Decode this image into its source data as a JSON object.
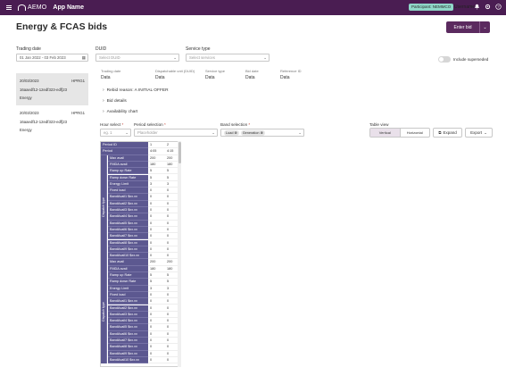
{
  "header": {
    "logo_text": "AEMO",
    "app_name": "App Name",
    "participant_badge": "Participant: NEMMCO",
    "username": "Username"
  },
  "page": {
    "title": "Energy & FCAS bids",
    "enter_bid_label": "Enter bid"
  },
  "filters": {
    "trading_date_label": "Trading date",
    "trading_date_value": "01 Jan 2022 - 03 Feb 2023",
    "duid_label": "DUID",
    "duid_placeholder": "Select DUID",
    "service_type_label": "Service type",
    "service_type_placeholder": "Select services",
    "include_superseded_label": "Include superseded",
    "include_superseded_on": false
  },
  "bids": [
    {
      "date": "20/03/2023",
      "unit": "HPRG1",
      "id": "16aaedf12-12edf323-edf[23",
      "service": "Energy",
      "selected": true
    },
    {
      "date": "20/03/2023",
      "unit": "HPRG1",
      "id": "16aaedf12-12edf323-edf[23",
      "service": "Energy",
      "selected": false
    }
  ],
  "bid_meta": {
    "trading_date_label": "Trading date",
    "trading_date_value": "Data",
    "dispatchable_unit_label": "Dispatchable unit (DUID)",
    "dispatchable_unit_value": "Data",
    "service_type_label": "Service type",
    "service_type_value": "Data",
    "bid_date_label": "Bid date",
    "bid_date_value": "Data",
    "reference_id_label": "Reference ID",
    "reference_id_value": "Data"
  },
  "expanders": {
    "rebid_reason": "Rebid reason: A INITIAL OFFER",
    "bid_details": "Bid details",
    "availability_chart": "Availability chart"
  },
  "controls": {
    "hour_select_label": "Hour select",
    "hour_select_value": "eg. 1",
    "period_selection_label": "Period selection",
    "period_selection_placeholder": "Placeholder",
    "band_selection_label": "Band selection",
    "band_chips": [
      "Load",
      "Generation"
    ],
    "table_view_label": "Table view",
    "table_view_options": [
      "Vertical",
      "Horizontal"
    ],
    "table_view_selected": "Vertical",
    "expand_label": "Expand",
    "export_label": "Export"
  },
  "table": {
    "period_id_label": "Period ID",
    "period_label": "Period",
    "period_ids": [
      "1",
      "2"
    ],
    "periods": [
      "4:05",
      "4:15"
    ],
    "groups": [
      {
        "name": "Dispatch type",
        "rows": [
          {
            "label": "Max avail",
            "values": [
              "200",
              "200"
            ]
          },
          {
            "label": "FMDA avail",
            "values": [
              "180",
              "180"
            ]
          },
          {
            "label": "Ramp up Rate",
            "values": [
              "5",
              "5"
            ]
          },
          {
            "label": "Ramp down Rate",
            "values": [
              "5",
              "5"
            ]
          },
          {
            "label": "Energy Limit",
            "values": [
              "3",
              "3"
            ]
          },
          {
            "label": "Fixed load",
            "values": [
              "0",
              "0"
            ]
          },
          {
            "label": "BandAvail1 $xx.xx",
            "values": [
              "0",
              "0"
            ]
          },
          {
            "label": "BandAvail2 $xx.xx",
            "values": [
              "0",
              "0"
            ]
          },
          {
            "label": "BandAvail3 $xx.xx",
            "values": [
              "0",
              "0"
            ]
          },
          {
            "label": "BandAvail4 $xx.xx",
            "values": [
              "0",
              "0"
            ]
          },
          {
            "label": "BandAvail5 $xx.xx",
            "values": [
              "0",
              "0"
            ]
          },
          {
            "label": "BandAvail6 $xx.xx",
            "values": [
              "0",
              "0"
            ]
          },
          {
            "label": "BandAvail7 $xx.xx",
            "values": [
              "0",
              "0"
            ]
          },
          {
            "label": "BandAvail8 $xx.xx",
            "values": [
              "0",
              "0"
            ]
          },
          {
            "label": "BandAvail9 $xx.xx",
            "values": [
              "0",
              "0"
            ]
          },
          {
            "label": "BandAvail10 $xx.xx",
            "values": [
              "0",
              "0"
            ]
          }
        ]
      },
      {
        "name": "Dispatch type",
        "rows": [
          {
            "label": "Max avail",
            "values": [
              "200",
              "200"
            ]
          },
          {
            "label": "FMDA avail",
            "values": [
              "180",
              "180"
            ]
          },
          {
            "label": "Ramp up Rate",
            "values": [
              "5",
              "5"
            ]
          },
          {
            "label": "Ramp down Rate",
            "values": [
              "5",
              "5"
            ]
          },
          {
            "label": "Energy Limit",
            "values": [
              "3",
              "3"
            ]
          },
          {
            "label": "Fixed load",
            "values": [
              "0",
              "0"
            ]
          },
          {
            "label": "BandAvail1 $xx.xx",
            "values": [
              "0",
              "0"
            ]
          },
          {
            "label": "BandAvail2 $xx.xx",
            "values": [
              "0",
              "0"
            ]
          },
          {
            "label": "BandAvail3 $xx.xx",
            "values": [
              "0",
              "0"
            ]
          },
          {
            "label": "BandAvail4 $xx.xx",
            "values": [
              "0",
              "0"
            ]
          },
          {
            "label": "BandAvail5 $xx.xx",
            "values": [
              "0",
              "0"
            ]
          },
          {
            "label": "BandAvail6 $xx.xx",
            "values": [
              "0",
              "0"
            ]
          },
          {
            "label": "BandAvail7 $xx.xx",
            "values": [
              "0",
              "0"
            ]
          },
          {
            "label": "BandAvail8 $xx.xx",
            "values": [
              "0",
              "0"
            ]
          },
          {
            "label": "BandAvail9 $xx.xx",
            "values": [
              "0",
              "0"
            ]
          },
          {
            "label": "BandAvail10 $xx.xx",
            "values": [
              "0",
              "0"
            ]
          }
        ]
      }
    ]
  }
}
